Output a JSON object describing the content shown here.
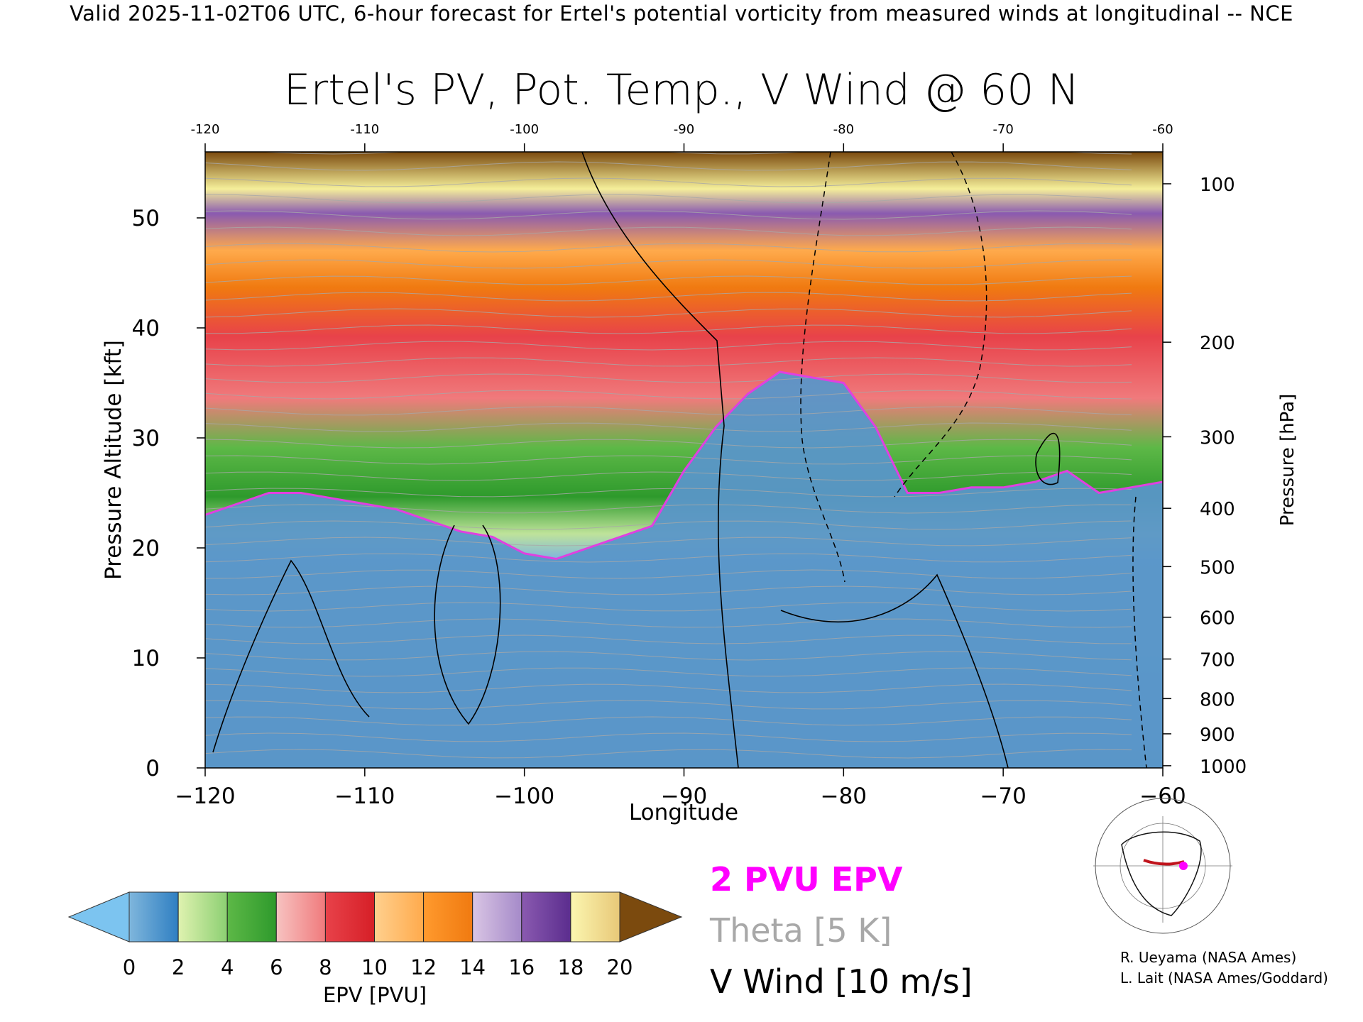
{
  "header": {
    "valid_line": "Valid 2025-11-02T06 UTC, 6-hour forecast for Ertel's potential vorticity from measured winds at longitudinal -- NCE"
  },
  "chart_data": {
    "type": "heatmap",
    "title": "Ertel's PV, Pot. Temp., V Wind @ 60 N",
    "xlabel": "Longitude",
    "ylabel": "Pressure Altitude [kft]",
    "y2label": "Pressure [hPa]",
    "xlim": [
      -120,
      -60
    ],
    "ylim": [
      0,
      56
    ],
    "x_ticks": [
      -120,
      -110,
      -100,
      -90,
      -80,
      -70,
      -60
    ],
    "x_tick_labels": [
      "−120",
      "−110",
      "−100",
      "−90",
      "−80",
      "−70",
      "−60"
    ],
    "top_tick_labels": [
      "-120",
      "-110",
      "-100",
      "-90",
      "-80",
      "-70",
      "-60"
    ],
    "y_ticks": [
      0,
      10,
      20,
      30,
      40,
      50
    ],
    "y_tick_labels": [
      "0",
      "10",
      "20",
      "30",
      "40",
      "50"
    ],
    "pressure_ticks": [
      {
        "hpa": 100,
        "kft": 53.1
      },
      {
        "hpa": 200,
        "kft": 38.7
      },
      {
        "hpa": 300,
        "kft": 30.1
      },
      {
        "hpa": 400,
        "kft": 23.6
      },
      {
        "hpa": 500,
        "kft": 18.3
      },
      {
        "hpa": 600,
        "kft": 13.7
      },
      {
        "hpa": 700,
        "kft": 9.9
      },
      {
        "hpa": 800,
        "kft": 6.3
      },
      {
        "hpa": 900,
        "kft": 3.1
      },
      {
        "hpa": 1000,
        "kft": 0.2
      }
    ],
    "pressure_labels": [
      "100",
      "200",
      "300",
      "400",
      "500",
      "600",
      "700",
      "800",
      "900",
      "1000"
    ],
    "tropopause_2pvu": {
      "lon": [
        -120,
        -118,
        -116,
        -114,
        -112,
        -110,
        -108,
        -106,
        -104,
        -102,
        -100,
        -98,
        -96,
        -94,
        -92,
        -90,
        -88,
        -86,
        -84,
        -82,
        -80,
        -78,
        -76,
        -74,
        -72,
        -70,
        -68,
        -66,
        -64,
        -62,
        -60
      ],
      "kft": [
        23,
        24,
        25,
        25,
        24.5,
        24,
        23.5,
        22.5,
        21.5,
        21,
        19.5,
        19,
        20,
        21,
        22,
        27,
        31,
        34,
        36,
        35.5,
        35,
        31,
        25,
        25,
        25.5,
        25.5,
        26,
        27,
        25,
        25.5,
        26
      ]
    },
    "epv_colorbar": {
      "label": "EPV [PVU]",
      "ticks": [
        0,
        2,
        4,
        6,
        8,
        10,
        12,
        14,
        16,
        18,
        20
      ],
      "tick_labels": [
        "0",
        "2",
        "4",
        "6",
        "8",
        "10",
        "12",
        "14",
        "16",
        "18",
        "20"
      ],
      "segments": [
        {
          "from": 0,
          "to": 2,
          "colors": [
            "#7fb6dc",
            "#2f7fc2"
          ]
        },
        {
          "from": 2,
          "to": 4,
          "colors": [
            "#dff2b0",
            "#8ccf72"
          ]
        },
        {
          "from": 4,
          "to": 6,
          "colors": [
            "#5db847",
            "#2e9a2c"
          ]
        },
        {
          "from": 6,
          "to": 8,
          "colors": [
            "#f7c3c1",
            "#f07a7c"
          ]
        },
        {
          "from": 8,
          "to": 10,
          "colors": [
            "#e8424a",
            "#d61f27"
          ]
        },
        {
          "from": 10,
          "to": 12,
          "colors": [
            "#ffd08e",
            "#ffaa4c"
          ]
        },
        {
          "from": 12,
          "to": 14,
          "colors": [
            "#ff9a2e",
            "#f07a10"
          ]
        },
        {
          "from": 14,
          "to": 16,
          "colors": [
            "#d9c5e4",
            "#a58ac9"
          ]
        },
        {
          "from": 16,
          "to": 18,
          "colors": [
            "#8a5ab0",
            "#5b2d8e"
          ]
        },
        {
          "from": 18,
          "to": 20,
          "colors": [
            "#fbf6b0",
            "#e8c878"
          ]
        }
      ],
      "under_color": "#7cc4f0",
      "over_color": "#7b4a0e"
    },
    "legend": {
      "pv_label": "2 PVU EPV",
      "theta_label": "Theta [5 K]",
      "wind_label": "V Wind [10 m/s]",
      "pv_color": "#ff00ff",
      "theta_color": "#a8a8a8",
      "wind_color": "#000000"
    },
    "colors": {
      "surface": "#5a96c8",
      "tropopause_line": "#e040e0"
    }
  },
  "credits": {
    "line1": "R. Ueyama (NASA Ames)",
    "line2": "L. Lait (NASA Ames/Goddard)"
  }
}
